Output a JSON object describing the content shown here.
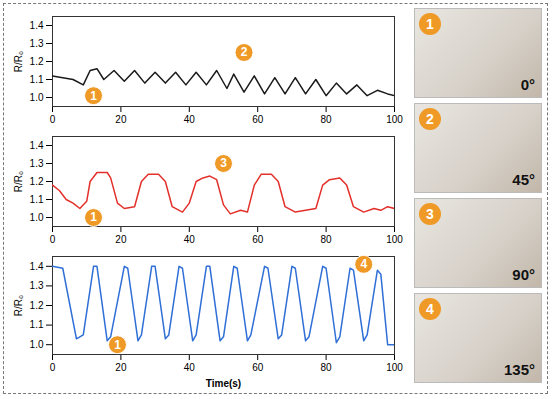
{
  "chart_data": [
    {
      "type": "line",
      "color": "#1a1a1a",
      "ylabel": "R/R₀",
      "x": [
        0,
        3,
        6,
        9,
        11,
        13,
        15,
        18,
        21,
        24,
        27,
        30,
        33,
        36,
        39,
        42,
        45,
        48,
        51,
        53,
        56,
        59,
        62,
        65,
        68,
        71,
        74,
        77,
        80,
        83,
        86,
        89,
        92,
        95,
        98,
        100
      ],
      "values": [
        1.12,
        1.11,
        1.1,
        1.07,
        1.15,
        1.16,
        1.1,
        1.15,
        1.09,
        1.15,
        1.08,
        1.14,
        1.08,
        1.14,
        1.07,
        1.14,
        1.07,
        1.15,
        1.05,
        1.13,
        1.03,
        1.12,
        1.02,
        1.11,
        1.02,
        1.11,
        1.02,
        1.1,
        1.01,
        1.08,
        1.02,
        1.07,
        1.01,
        1.04,
        1.02,
        1.01
      ],
      "xlim": [
        0,
        100
      ],
      "xticks": [
        0,
        20,
        40,
        60,
        80,
        100
      ],
      "ylim": [
        0.95,
        1.45
      ],
      "yticks": [
        {
          "value": 1,
          "label": "1.0"
        },
        1.1,
        1.2,
        1.3,
        1.4
      ],
      "annotations": [
        {
          "text": "1",
          "x": 12,
          "y": 1.01
        },
        {
          "text": "2",
          "x": 56,
          "y": 1.25
        }
      ]
    },
    {
      "type": "line",
      "color": "#e3302a",
      "ylabel": "R/R₀",
      "x": [
        0,
        2,
        4,
        6,
        8,
        10,
        11,
        13,
        16,
        17,
        19,
        21,
        24,
        26,
        28,
        31,
        33,
        35,
        38,
        40,
        42,
        44,
        46,
        48,
        50,
        52,
        55,
        57,
        59,
        61,
        64,
        66,
        68,
        71,
        74,
        77,
        79,
        81,
        84,
        86,
        88,
        91,
        94,
        96,
        98,
        100
      ],
      "values": [
        1.18,
        1.15,
        1.1,
        1.08,
        1.05,
        1.09,
        1.2,
        1.25,
        1.25,
        1.22,
        1.08,
        1.05,
        1.06,
        1.2,
        1.24,
        1.24,
        1.2,
        1.06,
        1.03,
        1.08,
        1.2,
        1.22,
        1.23,
        1.21,
        1.07,
        1.02,
        1.04,
        1.03,
        1.18,
        1.24,
        1.24,
        1.2,
        1.06,
        1.03,
        1.04,
        1.05,
        1.18,
        1.21,
        1.22,
        1.18,
        1.06,
        1.03,
        1.05,
        1.04,
        1.06,
        1.05
      ],
      "xlim": [
        0,
        100
      ],
      "xticks": [
        0,
        20,
        40,
        60,
        80,
        100
      ],
      "ylim": [
        0.95,
        1.45
      ],
      "yticks": [
        {
          "value": 1,
          "label": "1.0"
        },
        1.1,
        1.2,
        1.3,
        1.4
      ],
      "annotations": [
        {
          "text": "1",
          "x": 12,
          "y": 1.0
        },
        {
          "text": "3",
          "x": 50,
          "y": 1.3
        }
      ]
    },
    {
      "type": "line",
      "color": "#2f6fd6",
      "ylabel": "R/R₀",
      "xlabel": "Time(s)",
      "x": [
        0,
        3,
        7,
        9,
        12,
        13,
        16,
        17,
        21,
        22,
        25,
        26,
        29,
        30,
        33,
        34,
        37,
        38,
        41,
        42,
        45,
        46,
        49,
        50,
        53,
        54,
        57,
        58,
        62,
        63,
        66,
        67,
        70,
        71,
        74,
        75,
        79,
        80,
        83,
        84,
        87,
        88,
        91,
        92,
        95,
        96,
        98,
        100
      ],
      "values": [
        1.4,
        1.39,
        1.03,
        1.05,
        1.4,
        1.4,
        1.02,
        1.04,
        1.4,
        1.39,
        1.02,
        1.05,
        1.4,
        1.4,
        1.03,
        1.05,
        1.4,
        1.39,
        1.02,
        1.05,
        1.4,
        1.4,
        1.02,
        1.04,
        1.4,
        1.39,
        1.02,
        1.05,
        1.4,
        1.39,
        1.03,
        1.05,
        1.4,
        1.39,
        1.02,
        1.04,
        1.4,
        1.39,
        1.01,
        1.04,
        1.39,
        1.38,
        1.02,
        1.05,
        1.38,
        1.36,
        1.0,
        1.0
      ],
      "xlim": [
        0,
        100
      ],
      "xticks": [
        0,
        20,
        40,
        60,
        80,
        100
      ],
      "ylim": [
        0.95,
        1.45
      ],
      "yticks": [
        {
          "value": 1,
          "label": "1.0"
        },
        1.1,
        1.2,
        1.3,
        1.4
      ],
      "annotations": [
        {
          "text": "1",
          "x": 19,
          "y": 1.0
        },
        {
          "text": "4",
          "x": 91,
          "y": 1.41
        }
      ]
    }
  ],
  "photos": [
    {
      "label": "1",
      "angle": "0°"
    },
    {
      "label": "2",
      "angle": "45°"
    },
    {
      "label": "3",
      "angle": "90°"
    },
    {
      "label": "4",
      "angle": "135°"
    }
  ]
}
